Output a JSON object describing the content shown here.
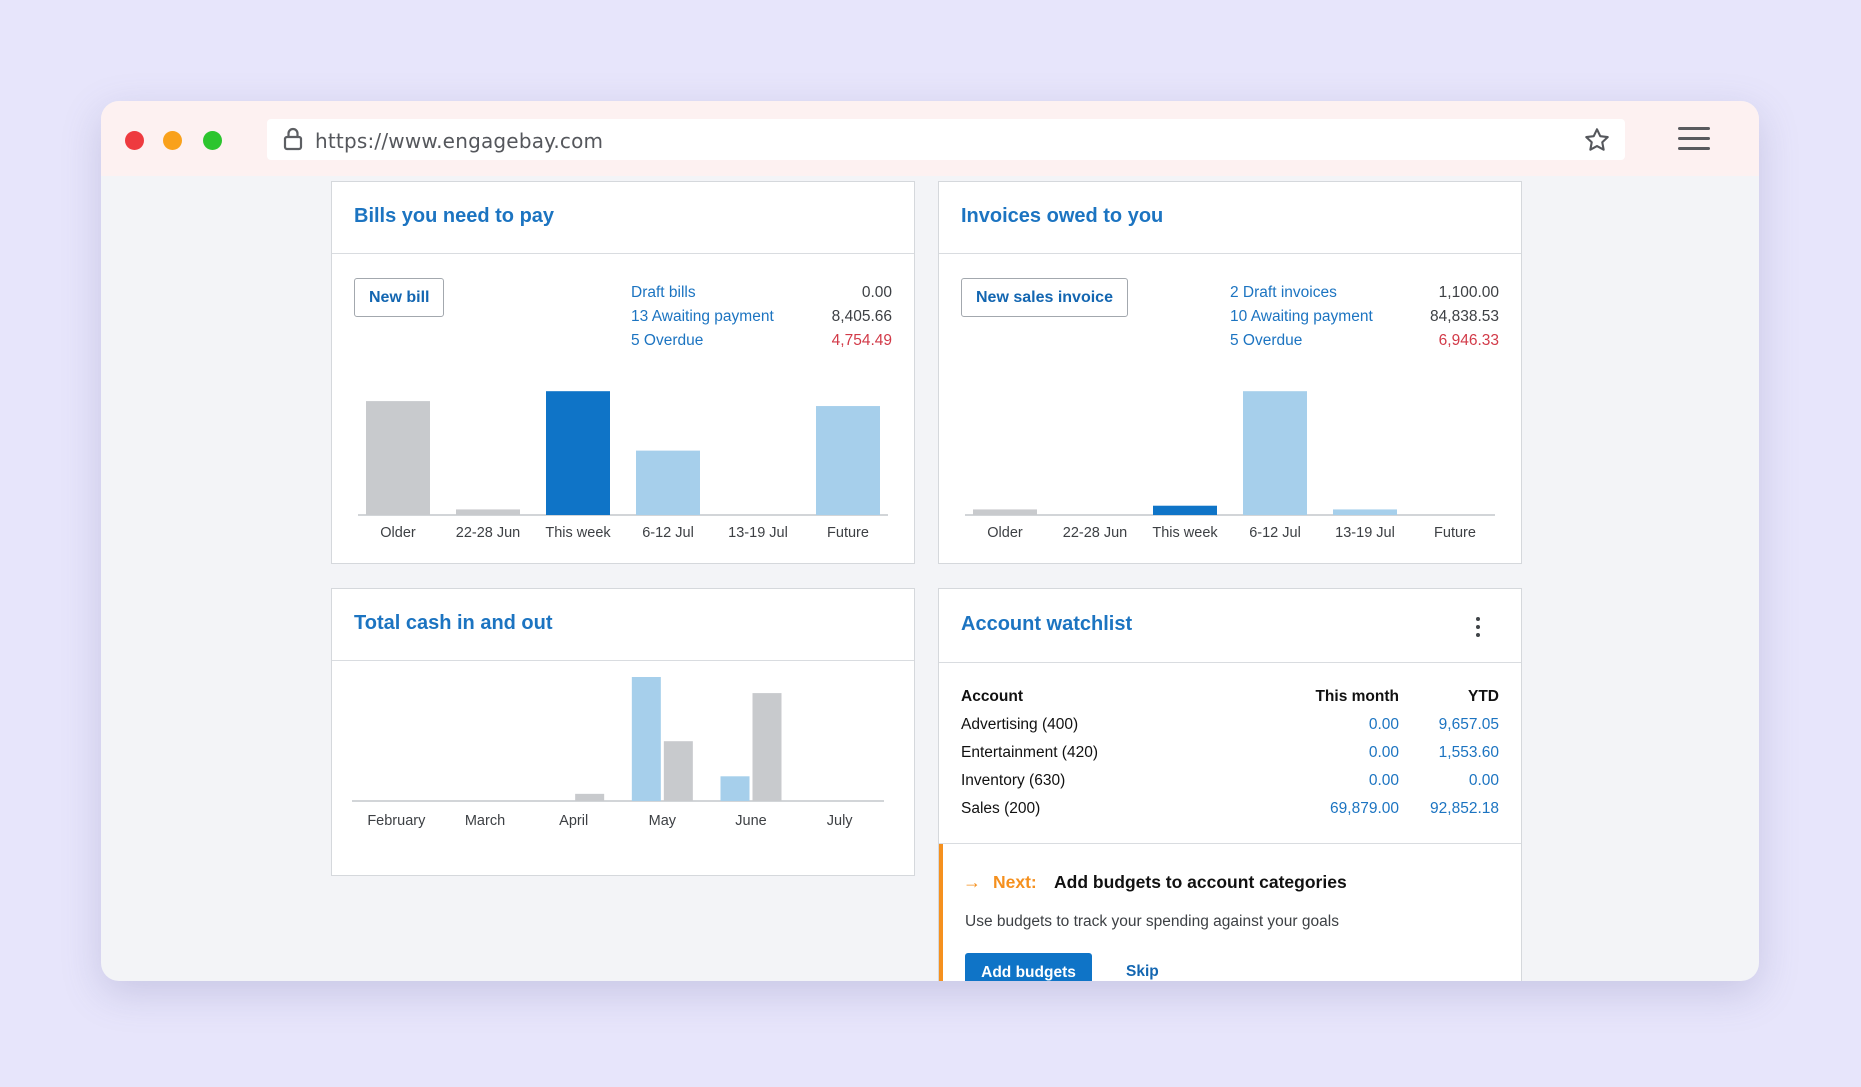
{
  "browser": {
    "url": "https://www.engagebay.com"
  },
  "bills": {
    "title": "Bills you need to pay",
    "new_button": "New bill",
    "summary": [
      {
        "label": "Draft bills",
        "value": "0.00"
      },
      {
        "label": "13 Awaiting payment",
        "value": "8,405.66"
      },
      {
        "label": "5 Overdue",
        "value": "4,754.49"
      }
    ]
  },
  "invoices": {
    "title": "Invoices owed to you",
    "new_button": "New sales invoice",
    "summary": [
      {
        "label": "2 Draft invoices",
        "value": "1,100.00"
      },
      {
        "label": "10 Awaiting payment",
        "value": "84,838.53"
      },
      {
        "label": "5 Overdue",
        "value": "6,946.33"
      }
    ]
  },
  "cash": {
    "title": "Total cash in and out"
  },
  "watchlist": {
    "title": "Account watchlist",
    "columns": [
      "Account",
      "This month",
      "YTD"
    ],
    "rows": [
      {
        "account": "Advertising (400)",
        "this_month": "0.00",
        "ytd": "9,657.05"
      },
      {
        "account": "Entertainment (420)",
        "this_month": "0.00",
        "ytd": "1,553.60"
      },
      {
        "account": "Inventory (630)",
        "this_month": "0.00",
        "ytd": "0.00"
      },
      {
        "account": "Sales (200)",
        "this_month": "69,879.00",
        "ytd": "92,852.18"
      }
    ],
    "next": {
      "arrow": "→",
      "label": "Next:",
      "title": "Add budgets to account categories",
      "description": "Use budgets to track your spending against your goals",
      "primary_button": "Add budgets",
      "skip_button": "Skip"
    }
  },
  "colors": {
    "past": "#c8cacd",
    "current": "#0f74c7",
    "upcoming": "#a6cfeb",
    "cash_in": "#a6cfeb",
    "cash_out": "#c8cacd",
    "overdue_text": "#d23a48",
    "accent_orange": "#f5901e"
  },
  "chart_data": [
    {
      "id": "bills",
      "type": "bar",
      "categories": [
        "Older",
        "22-28 Jun",
        "This week",
        "6-12 Jul",
        "13-19 Jul",
        "Future"
      ],
      "values": [
        920,
        45,
        1000,
        520,
        0,
        880
      ],
      "bar_colors": [
        "past",
        "past",
        "current",
        "upcoming",
        "upcoming",
        "upcoming"
      ],
      "ylim": [
        0,
        1050
      ]
    },
    {
      "id": "invoices",
      "type": "bar",
      "categories": [
        "Older",
        "22-28 Jun",
        "This week",
        "6-12 Jul",
        "13-19 Jul",
        "Future"
      ],
      "values": [
        45,
        0,
        75,
        1000,
        45,
        0
      ],
      "bar_colors": [
        "past",
        "past",
        "current",
        "upcoming",
        "upcoming",
        "upcoming"
      ],
      "ylim": [
        0,
        1050
      ]
    },
    {
      "id": "cash",
      "type": "bar",
      "categories": [
        "February",
        "March",
        "April",
        "May",
        "June",
        "July"
      ],
      "series": [
        {
          "values": [
            0,
            0,
            0,
            1000,
            190,
            0
          ],
          "color": "cash_in"
        },
        {
          "values": [
            0,
            0,
            55,
            460,
            830,
            0
          ],
          "color": "cash_out"
        }
      ],
      "ylim": [
        0,
        1000
      ]
    }
  ]
}
